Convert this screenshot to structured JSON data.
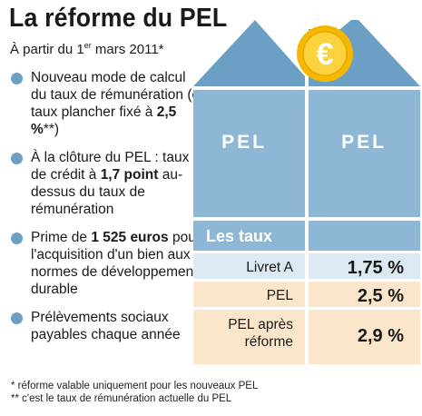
{
  "title": "La réforme du PEL",
  "subtitle": {
    "prefix": "À partir du 1",
    "sup": "er",
    "suffix": " mars 2011*"
  },
  "bullets": [
    {
      "before": "Nouveau mode de calcul du taux de rémunération (et taux plancher fixé à ",
      "bold": "2,5 %",
      "after": "**)"
    },
    {
      "before": "À la clôture du PEL : taux de crédit à ",
      "bold": "1,7 point",
      "after": " au-dessus du taux de rémunération"
    },
    {
      "before": "Prime de ",
      "bold": "1 525 euros",
      "after": " pour l'acquisition d'un bien aux normes de développement durable"
    },
    {
      "before": "Prélèvements sociaux payables chaque année",
      "bold": "",
      "after": ""
    }
  ],
  "house": {
    "roof_labels": [
      "PEL",
      "PEL"
    ],
    "coin_symbol": "€",
    "table_header": "Les taux",
    "rows": [
      {
        "label": "Livret A",
        "value": "1,75 %"
      },
      {
        "label": "PEL",
        "value": "2,5 %"
      },
      {
        "label_line1": "PEL après",
        "label_line2": "réforme",
        "value": "2,9 %"
      }
    ]
  },
  "footnotes": [
    "* réforme valable uniquement pour les nouveaux PEL",
    "** c'est le taux de rémunération actuelle du PEL"
  ],
  "colors": {
    "roof": "#6b9fc4",
    "wall": "#8cb8d6",
    "header": "#8cb8d6",
    "row_light_blue": "#dbe9f3",
    "row_peach": "#fbe6cc",
    "coin_outer": "#f5b800",
    "coin_inner": "#fcd23c",
    "text_white": "#ffffff"
  }
}
